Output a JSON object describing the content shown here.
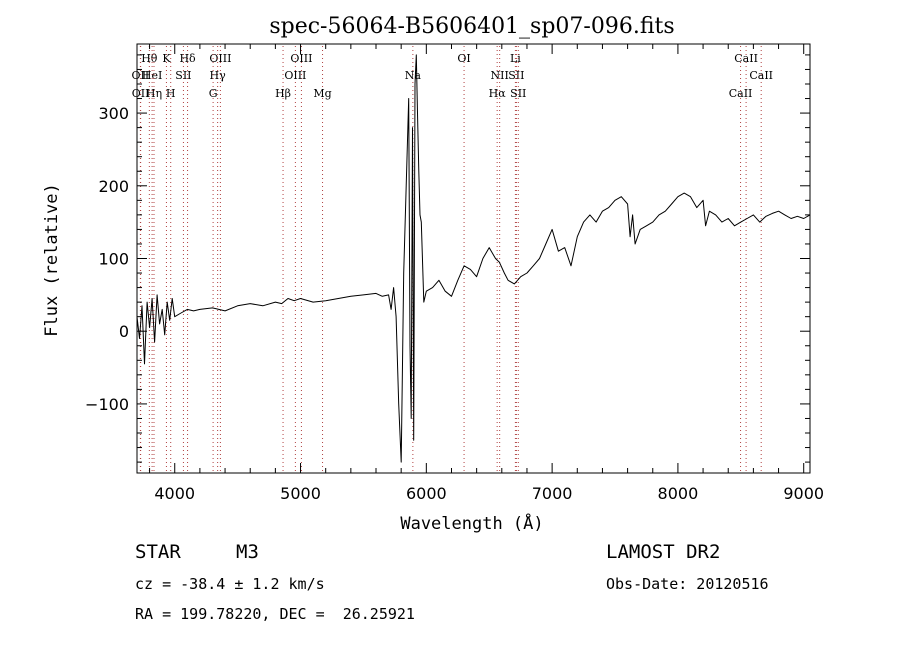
{
  "chart_data": {
    "type": "line",
    "title": "spec-56064-B5606401_sp07-096.fits",
    "xlabel": "Wavelength (Å)",
    "ylabel": "Flux (relative)",
    "xlim": [
      3700,
      9050
    ],
    "ylim": [
      -195,
      395
    ],
    "xticks": [
      4000,
      5000,
      6000,
      7000,
      8000,
      9000
    ],
    "yticks": [
      -100,
      0,
      100,
      200,
      300
    ],
    "grid": false,
    "line_color": "#000000",
    "marker_color": "#b04040",
    "series": [
      {
        "x": [
          3700,
          3720,
          3740,
          3760,
          3780,
          3800,
          3820,
          3840,
          3860,
          3880,
          3900,
          3920,
          3940,
          3960,
          3980,
          4000,
          4050,
          4100,
          4150,
          4200,
          4300,
          4400,
          4500,
          4600,
          4700,
          4800,
          4850,
          4900,
          4950,
          5000,
          5100,
          5200,
          5300,
          5400,
          5500,
          5600,
          5650,
          5700,
          5720,
          5740,
          5760,
          5780,
          5800,
          5820,
          5840,
          5860,
          5870,
          5880,
          5890,
          5900,
          5910,
          5920,
          5930,
          5940,
          5950,
          5960,
          5980,
          6000,
          6050,
          6100,
          6150,
          6200,
          6250,
          6300,
          6350,
          6400,
          6450,
          6500,
          6550,
          6580,
          6620,
          6650,
          6700,
          6750,
          6800,
          6850,
          6900,
          6950,
          7000,
          7050,
          7100,
          7150,
          7200,
          7250,
          7300,
          7350,
          7400,
          7450,
          7500,
          7550,
          7600,
          7620,
          7640,
          7660,
          7700,
          7750,
          7800,
          7850,
          7900,
          7950,
          8000,
          8050,
          8100,
          8150,
          8200,
          8220,
          8250,
          8300,
          8350,
          8400,
          8450,
          8500,
          8550,
          8600,
          8650,
          8700,
          8750,
          8800,
          8850,
          8900,
          8950,
          9000,
          9050
        ],
        "y": [
          20,
          -10,
          35,
          -45,
          40,
          5,
          45,
          -15,
          50,
          10,
          30,
          -5,
          40,
          15,
          45,
          20,
          25,
          30,
          28,
          30,
          32,
          28,
          35,
          38,
          35,
          40,
          38,
          45,
          42,
          45,
          40,
          42,
          45,
          48,
          50,
          52,
          48,
          50,
          30,
          60,
          20,
          -100,
          -180,
          80,
          200,
          320,
          -20,
          -120,
          280,
          -150,
          340,
          380,
          300,
          220,
          160,
          150,
          40,
          55,
          60,
          70,
          55,
          48,
          70,
          90,
          85,
          75,
          100,
          115,
          100,
          95,
          80,
          70,
          65,
          75,
          80,
          90,
          100,
          120,
          140,
          110,
          115,
          90,
          130,
          150,
          160,
          150,
          165,
          170,
          180,
          185,
          175,
          130,
          160,
          120,
          140,
          145,
          150,
          160,
          165,
          175,
          185,
          190,
          185,
          170,
          180,
          145,
          165,
          160,
          150,
          155,
          145,
          150,
          155,
          160,
          150,
          158,
          162,
          165,
          160,
          155,
          158,
          155,
          160
        ]
      }
    ],
    "line_markers": [
      {
        "label": "Hθ",
        "x": 3798,
        "row": 1
      },
      {
        "label": "OII",
        "x": 3727,
        "row": 2
      },
      {
        "label": "OII",
        "x": 3729,
        "row": 3
      },
      {
        "label": "HeI",
        "x": 3820,
        "row": 2
      },
      {
        "label": "Hη",
        "x": 3835,
        "row": 3
      },
      {
        "label": "K",
        "x": 3934,
        "row": 1
      },
      {
        "label": "SII",
        "x": 4069,
        "row": 2
      },
      {
        "label": "H",
        "x": 3968,
        "row": 3
      },
      {
        "label": "Hδ",
        "x": 4102,
        "row": 1
      },
      {
        "label": "OIII",
        "x": 4363,
        "row": 1
      },
      {
        "label": "Hγ",
        "x": 4341,
        "row": 2
      },
      {
        "label": "G",
        "x": 4305,
        "row": 3
      },
      {
        "label": "Hβ",
        "x": 4861,
        "row": 3
      },
      {
        "label": "OIII",
        "x": 5007,
        "row": 1
      },
      {
        "label": "OIII",
        "x": 4959,
        "row": 2
      },
      {
        "label": "Mg",
        "x": 5175,
        "row": 3
      },
      {
        "label": "Na",
        "x": 5893,
        "row": 2
      },
      {
        "label": "OI",
        "x": 6300,
        "row": 1
      },
      {
        "label": "Li",
        "x": 6708,
        "row": 1
      },
      {
        "label": "NII",
        "x": 6583,
        "row": 2
      },
      {
        "label": "SII",
        "x": 6716,
        "row": 2
      },
      {
        "label": "Hα",
        "x": 6563,
        "row": 3
      },
      {
        "label": "SII",
        "x": 6731,
        "row": 3
      },
      {
        "label": "CaII",
        "x": 8542,
        "row": 1
      },
      {
        "label": "CaII",
        "x": 8662,
        "row": 2
      },
      {
        "label": "CaII",
        "x": 8498,
        "row": 3
      }
    ]
  },
  "info": {
    "object_type": "STAR",
    "subclass": "M3",
    "survey": "LAMOST DR2",
    "redshift": "cz = -38.4 ± 1.2 km/s",
    "obs_date": "Obs-Date: 20120516",
    "coords": "RA = 199.78220, DEC =  26.25921"
  }
}
